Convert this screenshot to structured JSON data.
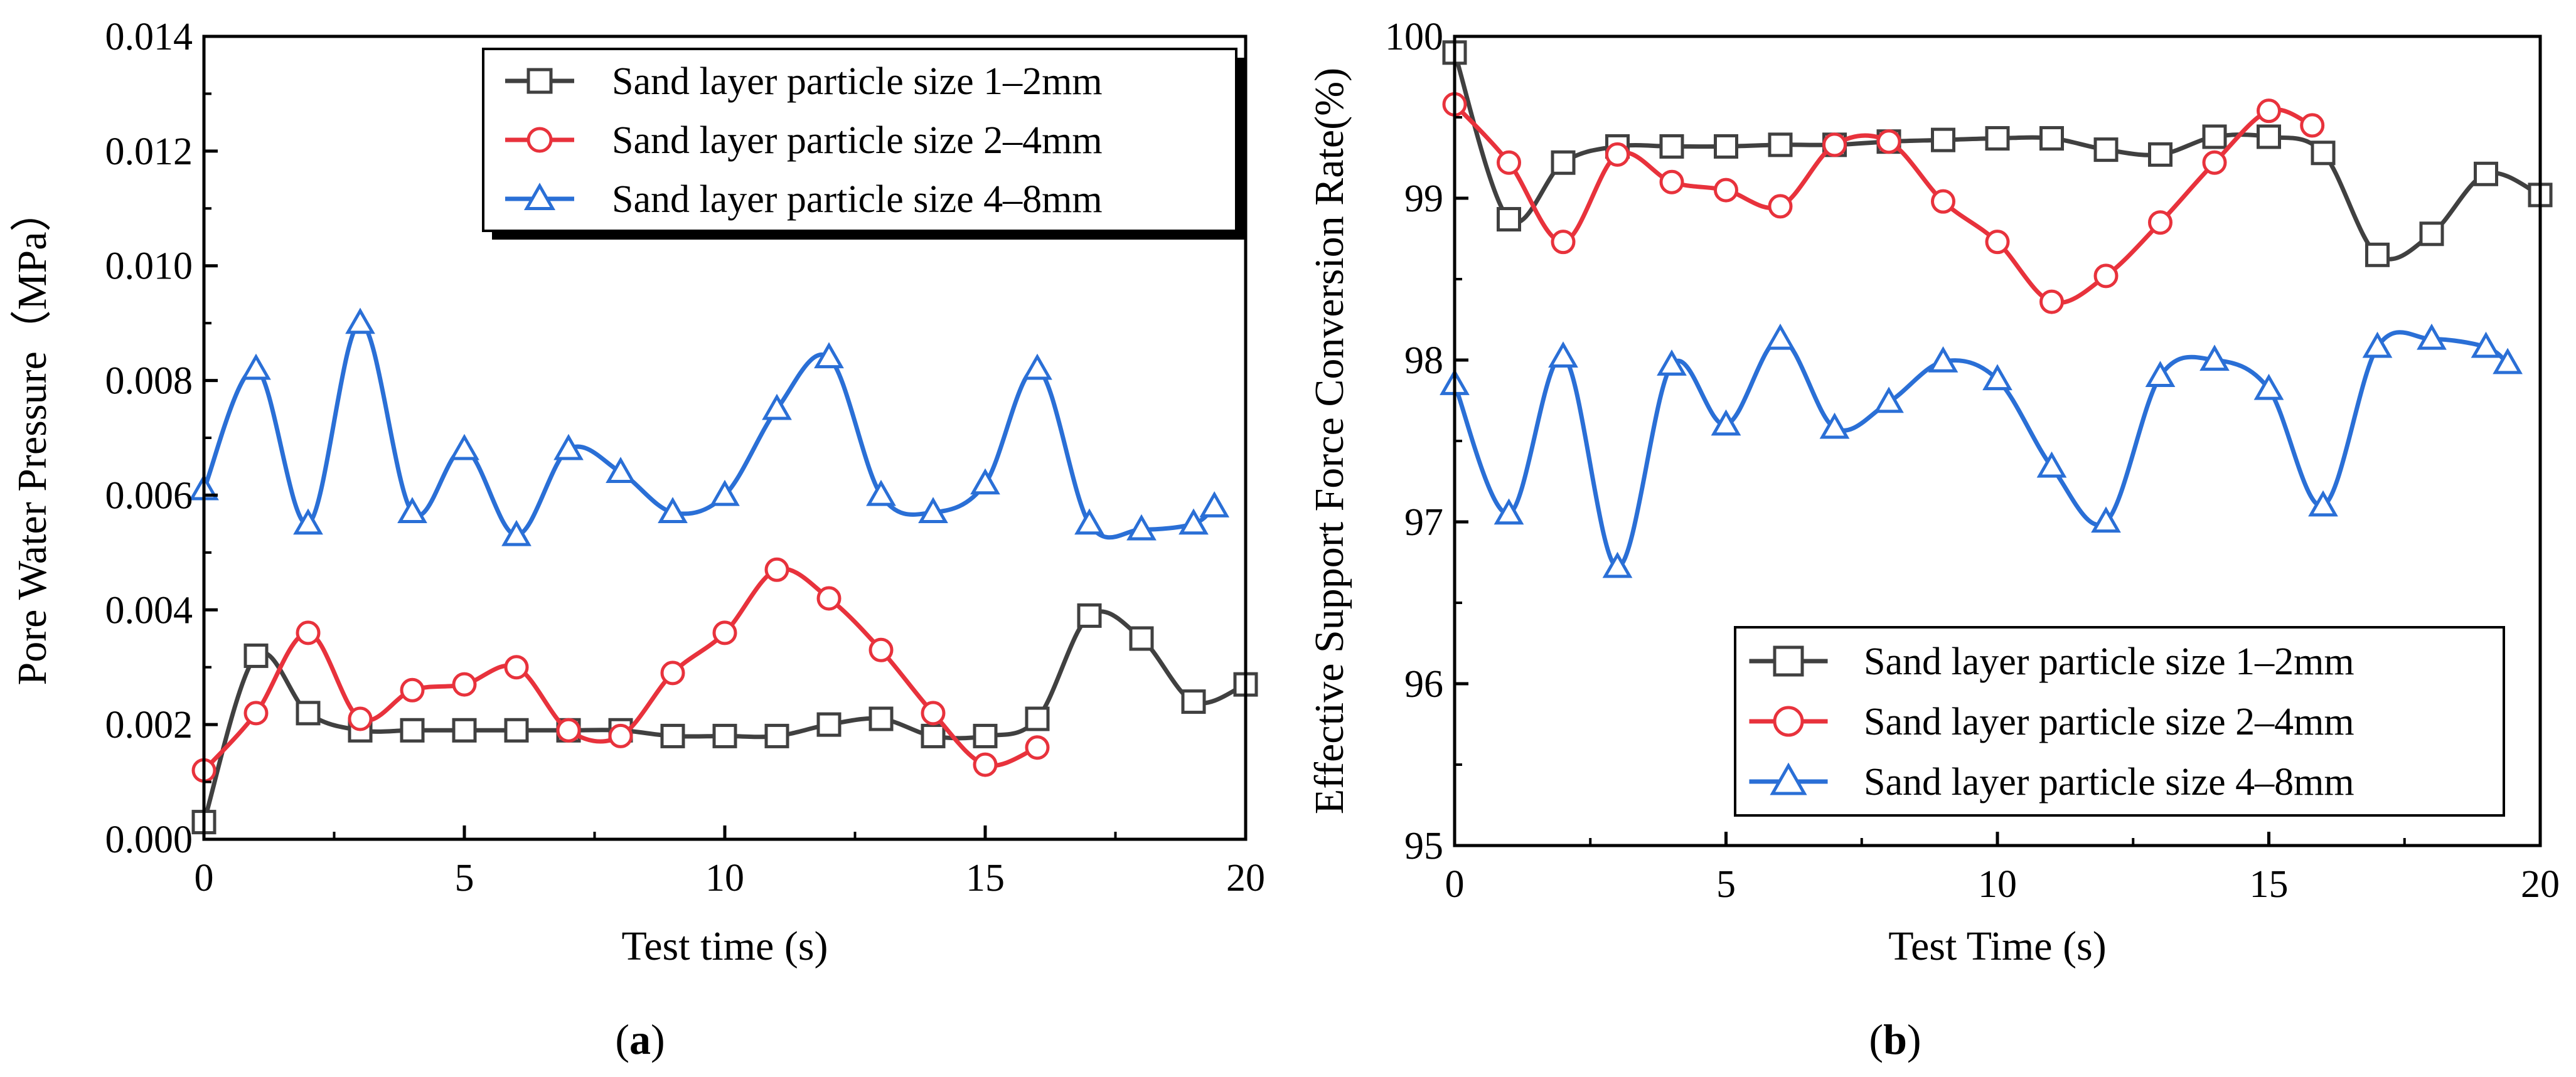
{
  "figure": {
    "panels": [
      {
        "caption": {
          "open": "(",
          "letter": "a",
          "close": ")"
        },
        "legend_position": "top-right"
      },
      {
        "caption": {
          "open": "(",
          "letter": "b",
          "close": ")"
        },
        "legend_position": "bottom-right"
      }
    ]
  },
  "chart_data": [
    {
      "type": "line",
      "title": "",
      "xlabel": "Test time (s)",
      "ylabel": "Pore Water Pressure（MPa）",
      "xlim": [
        0,
        20
      ],
      "ylim": [
        0,
        0.014
      ],
      "xticks": [
        0,
        5,
        10,
        15,
        20
      ],
      "xtick_labels": [
        "0",
        "5",
        "10",
        "15",
        "20"
      ],
      "yticks": [
        0,
        0.002,
        0.004,
        0.006,
        0.008,
        0.01,
        0.012,
        0.014
      ],
      "ytick_labels": [
        "0.000",
        "0.002",
        "0.004",
        "0.006",
        "0.008",
        "0.010",
        "0.012",
        "0.014"
      ],
      "grid": false,
      "series": [
        {
          "name": "Sand layer particle size 1–2mm",
          "color": "#404040",
          "marker": "square",
          "x": [
            0,
            1,
            2,
            3,
            4,
            5,
            6,
            7,
            8,
            9,
            10,
            11,
            12,
            13,
            14,
            15,
            16,
            17,
            18,
            19,
            20
          ],
          "y": [
            0.0003,
            0.0032,
            0.0022,
            0.0019,
            0.0019,
            0.0019,
            0.0019,
            0.0019,
            0.0019,
            0.0018,
            0.0018,
            0.0018,
            0.002,
            0.0021,
            0.0018,
            0.0018,
            0.0021,
            0.0039,
            0.0035,
            0.0024,
            0.0027
          ]
        },
        {
          "name": "Sand layer particle size 2–4mm",
          "color": "#e8323c",
          "marker": "circle",
          "x": [
            0,
            1,
            2,
            3,
            4,
            5,
            6,
            7,
            8,
            9,
            10,
            11,
            12,
            13,
            14,
            15,
            16
          ],
          "y": [
            0.0012,
            0.0022,
            0.0036,
            0.0021,
            0.0026,
            0.0027,
            0.003,
            0.0019,
            0.0018,
            0.0029,
            0.0036,
            0.0047,
            0.0042,
            0.0033,
            0.0022,
            0.0013,
            0.0016
          ]
        },
        {
          "name": "Sand layer particle size 4–8mm",
          "color": "#2a6fd6",
          "marker": "triangle",
          "x": [
            0,
            1,
            2,
            3,
            4,
            5,
            6,
            7,
            8,
            9,
            10,
            11,
            12,
            13,
            14,
            15,
            16,
            17,
            18,
            19,
            19.4
          ],
          "y": [
            0.0061,
            0.0082,
            0.0055,
            0.009,
            0.0057,
            0.0068,
            0.0053,
            0.0068,
            0.0064,
            0.0057,
            0.006,
            0.0075,
            0.0084,
            0.006,
            0.0057,
            0.0062,
            0.0082,
            0.0055,
            0.0054,
            0.0055,
            0.0058
          ]
        }
      ]
    },
    {
      "type": "line",
      "title": "",
      "xlabel": "Test Time (s)",
      "ylabel": "Effective Support Force Conversion Rate(%)",
      "xlim": [
        0,
        20
      ],
      "ylim": [
        95,
        100
      ],
      "xticks": [
        0,
        5,
        10,
        15,
        20
      ],
      "xtick_labels": [
        "0",
        "5",
        "10",
        "15",
        "20"
      ],
      "yticks": [
        95,
        96,
        97,
        98,
        99,
        100
      ],
      "ytick_labels": [
        "95",
        "96",
        "97",
        "98",
        "99",
        "100"
      ],
      "grid": false,
      "series": [
        {
          "name": "Sand layer particle size 1–2mm",
          "color": "#404040",
          "marker": "square",
          "x": [
            0,
            1,
            2,
            3,
            4,
            5,
            6,
            7,
            8,
            9,
            10,
            11,
            12,
            13,
            14,
            15,
            16,
            17,
            18,
            19,
            20
          ],
          "y": [
            99.9,
            98.87,
            99.22,
            99.32,
            99.32,
            99.32,
            99.33,
            99.33,
            99.35,
            99.36,
            99.37,
            99.37,
            99.3,
            99.27,
            99.38,
            99.38,
            99.28,
            98.65,
            98.78,
            99.15,
            99.02
          ]
        },
        {
          "name": "Sand layer particle size 2–4mm",
          "color": "#e8323c",
          "marker": "circle",
          "x": [
            0,
            1,
            2,
            3,
            4,
            5,
            6,
            7,
            8,
            9,
            10,
            11,
            12,
            13,
            14,
            15,
            15.8
          ],
          "y": [
            99.58,
            99.22,
            98.73,
            99.27,
            99.1,
            99.05,
            98.95,
            99.33,
            99.35,
            98.98,
            98.73,
            98.36,
            98.52,
            98.85,
            99.22,
            99.54,
            99.45
          ]
        },
        {
          "name": "Sand layer particle size 4–8mm",
          "color": "#2a6fd6",
          "marker": "triangle",
          "x": [
            0,
            1,
            2,
            3,
            4,
            5,
            6,
            7,
            8,
            9,
            10,
            11,
            12,
            13,
            14,
            15,
            16,
            17,
            18,
            19,
            19.4
          ],
          "y": [
            97.85,
            97.05,
            98.02,
            96.72,
            97.97,
            97.6,
            98.13,
            97.58,
            97.74,
            97.99,
            97.88,
            97.34,
            97.0,
            97.9,
            98.0,
            97.82,
            97.1,
            98.08,
            98.13,
            98.08,
            97.98
          ]
        }
      ]
    }
  ]
}
